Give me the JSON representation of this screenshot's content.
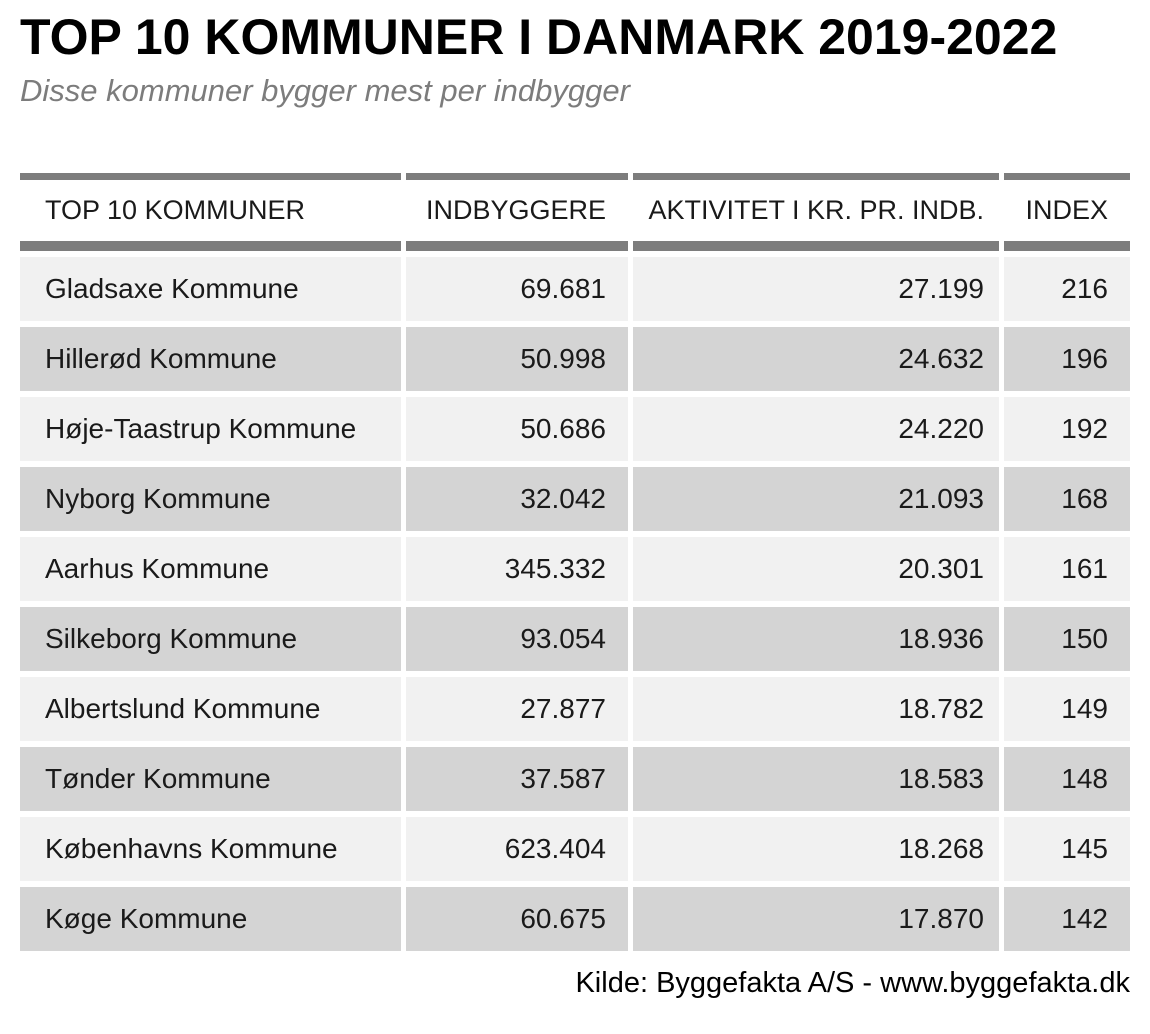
{
  "header": {
    "title": "TOP 10 KOMMUNER I DANMARK 2019-2022",
    "subtitle": "Disse kommuner bygger mest per indbygger"
  },
  "chart_data": {
    "type": "table",
    "title": "TOP 10 KOMMUNER I DANMARK 2019-2022",
    "subtitle": "Disse kommuner bygger mest per indbygger",
    "columns": [
      "TOP 10 KOMMUNER",
      "INDBYGGERE",
      "AKTIVITET I KR. PR. INDB.",
      "INDEX"
    ],
    "rows": [
      [
        "Gladsaxe Kommune",
        "69.681",
        "27.199",
        "216"
      ],
      [
        "Hillerød Kommune",
        "50.998",
        "24.632",
        "196"
      ],
      [
        "Høje-Taastrup Kommune",
        "50.686",
        "24.220",
        "192"
      ],
      [
        "Nyborg Kommune",
        "32.042",
        "21.093",
        "168"
      ],
      [
        "Aarhus Kommune",
        "345.332",
        "20.301",
        "161"
      ],
      [
        "Silkeborg Kommune",
        "93.054",
        "18.936",
        "150"
      ],
      [
        "Albertslund Kommune",
        "27.877",
        "18.782",
        "149"
      ],
      [
        "Tønder Kommune",
        "37.587",
        "18.583",
        "148"
      ],
      [
        "Københavns Kommune",
        "623.404",
        "18.268",
        "145"
      ],
      [
        "Køge Kommune",
        "60.675",
        "17.870",
        "142"
      ]
    ],
    "source": "Kilde: Byggefakta A/S - www.byggefakta.dk",
    "layout": {
      "row_striping": [
        "light",
        "dark"
      ],
      "numeric_columns_right_aligned": true
    }
  },
  "colors": {
    "header_bar": "#7d7d7d",
    "row_light": "#f1f1f1",
    "row_dark": "#d4d4d4",
    "text": "#1a1a1a",
    "subtitle_gray": "#7c7c7c"
  }
}
